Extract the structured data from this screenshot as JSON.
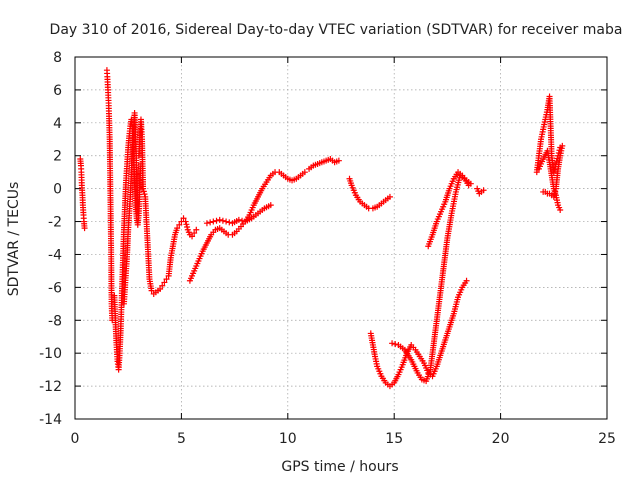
{
  "chart_data": {
    "type": "scatter",
    "title": "Day 310 of 2016, Sidereal Day-to-day VTEC variation (SDTVAR) for receiver maba",
    "xlabel": "GPS time / hours",
    "ylabel": "SDTVAR / TECUs",
    "xlim": [
      0,
      25
    ],
    "ylim": [
      -14,
      8
    ],
    "x_ticks": [
      "0",
      "5",
      "10",
      "15",
      "20",
      "25"
    ],
    "y_ticks": [
      "-14",
      "-12",
      "-10",
      "-8",
      "-6",
      "-4",
      "-2",
      "0",
      "2",
      "4",
      "6",
      "8"
    ],
    "grid": true,
    "marker": "+",
    "color": "#ff0000",
    "series": [
      {
        "x": [
          0.25,
          0.28,
          0.3,
          0.32,
          0.35,
          0.37,
          0.4,
          0.42,
          0.45
        ],
        "y": [
          1.8,
          1.4,
          1.0,
          0.2,
          -0.4,
          -1.0,
          -1.6,
          -2.0,
          -2.4
        ]
      },
      {
        "x": [
          1.5,
          1.52,
          1.55,
          1.58,
          1.6,
          1.63,
          1.66,
          1.7,
          1.72,
          1.75
        ],
        "y": [
          7.2,
          6.8,
          6.0,
          5.2,
          4.4,
          3.0,
          0.0,
          -4.0,
          -7.0,
          -8.0
        ]
      },
      {
        "x": [
          1.85,
          1.9,
          1.95,
          2.0,
          2.05,
          2.1,
          2.15,
          2.2,
          2.25,
          2.3,
          2.35,
          2.4,
          2.45,
          2.5,
          2.55,
          2.6,
          2.65,
          2.7,
          2.75,
          2.8,
          2.85,
          2.9,
          2.95,
          3.0,
          3.05,
          3.1
        ],
        "y": [
          -6.5,
          -8.0,
          -9.5,
          -10.5,
          -11.0,
          -10.0,
          -8.5,
          -6.5,
          -4.5,
          -2.5,
          -1.0,
          0.5,
          1.5,
          2.5,
          3.2,
          3.8,
          4.2,
          3.5,
          2.0,
          0.5,
          -1.0,
          -1.8,
          -2.2,
          -1.5,
          0.5,
          1.5
        ]
      },
      {
        "x": [
          2.3,
          2.35,
          2.4,
          2.45,
          2.5,
          2.55,
          2.6,
          2.65,
          2.7,
          2.75,
          2.8,
          2.85,
          2.9,
          2.95
        ],
        "y": [
          -7.0,
          -6.0,
          -5.0,
          -4.0,
          -2.5,
          -1.5,
          -0.5,
          1.0,
          2.5,
          3.5,
          4.6,
          3.0,
          1.0,
          -1.5
        ]
      },
      {
        "x": [
          3.0,
          3.1,
          3.15,
          3.2,
          3.3,
          3.4,
          3.5,
          3.6,
          3.7,
          3.8,
          3.9,
          4.0,
          4.1,
          4.2,
          4.3,
          4.4,
          4.5,
          4.6,
          4.7,
          4.8,
          4.9,
          5.0,
          5.1,
          5.2,
          5.3,
          5.4,
          5.5,
          5.6,
          5.7
        ],
        "y": [
          2.0,
          4.2,
          3.0,
          0.0,
          -0.5,
          -3.0,
          -5.5,
          -6.2,
          -6.4,
          -6.3,
          -6.2,
          -6.1,
          -5.9,
          -5.7,
          -5.5,
          -5.3,
          -4.2,
          -3.5,
          -2.8,
          -2.4,
          -2.2,
          -2.0,
          -1.8,
          -2.0,
          -2.5,
          -2.8,
          -2.9,
          -2.7,
          -2.5
        ]
      },
      {
        "x": [
          5.4,
          5.6,
          5.8,
          6.0,
          6.2,
          6.4,
          6.6,
          6.8,
          7.0,
          7.2,
          7.4,
          7.6,
          7.8,
          8.0,
          8.2,
          8.4,
          8.6,
          8.8,
          9.0,
          9.2,
          9.4,
          9.6,
          9.8,
          10.0,
          10.2,
          10.4,
          10.6,
          10.8
        ],
        "y": [
          -5.6,
          -5.0,
          -4.4,
          -3.8,
          -3.3,
          -2.8,
          -2.5,
          -2.4,
          -2.6,
          -2.8,
          -2.8,
          -2.6,
          -2.3,
          -2.0,
          -1.6,
          -1.0,
          -0.5,
          0.0,
          0.4,
          0.8,
          1.0,
          1.0,
          0.8,
          0.6,
          0.5,
          0.6,
          0.8,
          1.0
        ]
      },
      {
        "x": [
          6.2,
          6.5,
          6.8,
          7.1,
          7.4,
          7.7,
          8.0,
          8.3,
          8.6,
          8.9,
          9.2
        ],
        "y": [
          -2.1,
          -2.0,
          -1.9,
          -2.0,
          -2.1,
          -1.9,
          -2.0,
          -1.8,
          -1.5,
          -1.2,
          -1.0
        ]
      },
      {
        "x": [
          11.0,
          11.2,
          11.4,
          11.6,
          11.8,
          12.0,
          12.2,
          12.4
        ],
        "y": [
          1.2,
          1.4,
          1.5,
          1.6,
          1.7,
          1.8,
          1.6,
          1.7
        ]
      },
      {
        "x": [
          12.9,
          13.0,
          13.2,
          13.4,
          13.6,
          13.8,
          14.0,
          14.2,
          14.4,
          14.6,
          14.8
        ],
        "y": [
          0.6,
          0.2,
          -0.4,
          -0.8,
          -1.0,
          -1.2,
          -1.2,
          -1.1,
          -0.9,
          -0.7,
          -0.5
        ]
      },
      {
        "x": [
          13.9,
          14.0,
          14.1,
          14.2,
          14.4,
          14.6,
          14.8,
          15.0,
          15.2,
          15.4,
          15.6,
          15.8,
          16.0,
          16.2,
          16.4,
          16.6,
          16.8,
          17.0,
          17.2,
          17.4,
          17.6,
          17.8,
          18.0,
          18.2,
          18.4
        ],
        "y": [
          -8.8,
          -9.5,
          -10.2,
          -10.8,
          -11.4,
          -11.8,
          -12.0,
          -11.8,
          -11.3,
          -10.7,
          -10.0,
          -9.5,
          -9.8,
          -10.2,
          -10.6,
          -11.2,
          -11.4,
          -10.8,
          -10.0,
          -9.2,
          -8.4,
          -7.6,
          -6.6,
          -6.0,
          -5.6
        ]
      },
      {
        "x": [
          14.9,
          15.2,
          15.5,
          15.8,
          16.1,
          16.3,
          16.5,
          16.7,
          16.9,
          17.1,
          17.3,
          17.5,
          17.7,
          17.9,
          18.1,
          18.3,
          18.5
        ],
        "y": [
          -9.4,
          -9.5,
          -9.8,
          -10.4,
          -11.2,
          -11.6,
          -11.7,
          -11.0,
          -9.0,
          -7.0,
          -5.0,
          -3.0,
          -1.5,
          -0.2,
          0.8,
          0.6,
          0.2
        ]
      },
      {
        "x": [
          16.6,
          16.8,
          17.0,
          17.2,
          17.4,
          17.6,
          17.8,
          18.0,
          18.2,
          18.4,
          18.6
        ],
        "y": [
          -3.5,
          -2.8,
          -2.0,
          -1.4,
          -0.8,
          0.0,
          0.6,
          1.0,
          0.8,
          0.5,
          0.3
        ]
      },
      {
        "x": [
          18.9,
          19.0,
          19.1,
          19.2
        ],
        "y": [
          0.0,
          -0.3,
          -0.2,
          -0.1
        ]
      },
      {
        "x": [
          21.7,
          21.8,
          21.9,
          22.0,
          22.1,
          22.2,
          22.3,
          22.4,
          22.5,
          22.6,
          22.7,
          22.8
        ],
        "y": [
          1.0,
          2.0,
          3.0,
          3.6,
          4.2,
          4.8,
          5.6,
          2.0,
          1.0,
          1.5,
          2.0,
          2.5
        ]
      },
      {
        "x": [
          21.8,
          22.0,
          22.2,
          22.3,
          22.4,
          22.5,
          22.6,
          22.7,
          22.8
        ],
        "y": [
          1.2,
          1.8,
          2.3,
          1.6,
          0.8,
          0.0,
          -0.4,
          -1.0,
          -1.3
        ]
      },
      {
        "x": [
          22.0,
          22.1,
          22.2,
          22.3,
          22.4,
          22.5,
          22.6,
          22.7,
          22.8,
          22.9
        ],
        "y": [
          -0.2,
          -0.2,
          -0.3,
          -0.3,
          -0.4,
          -0.5,
          0.0,
          1.2,
          2.0,
          2.6
        ]
      }
    ]
  }
}
